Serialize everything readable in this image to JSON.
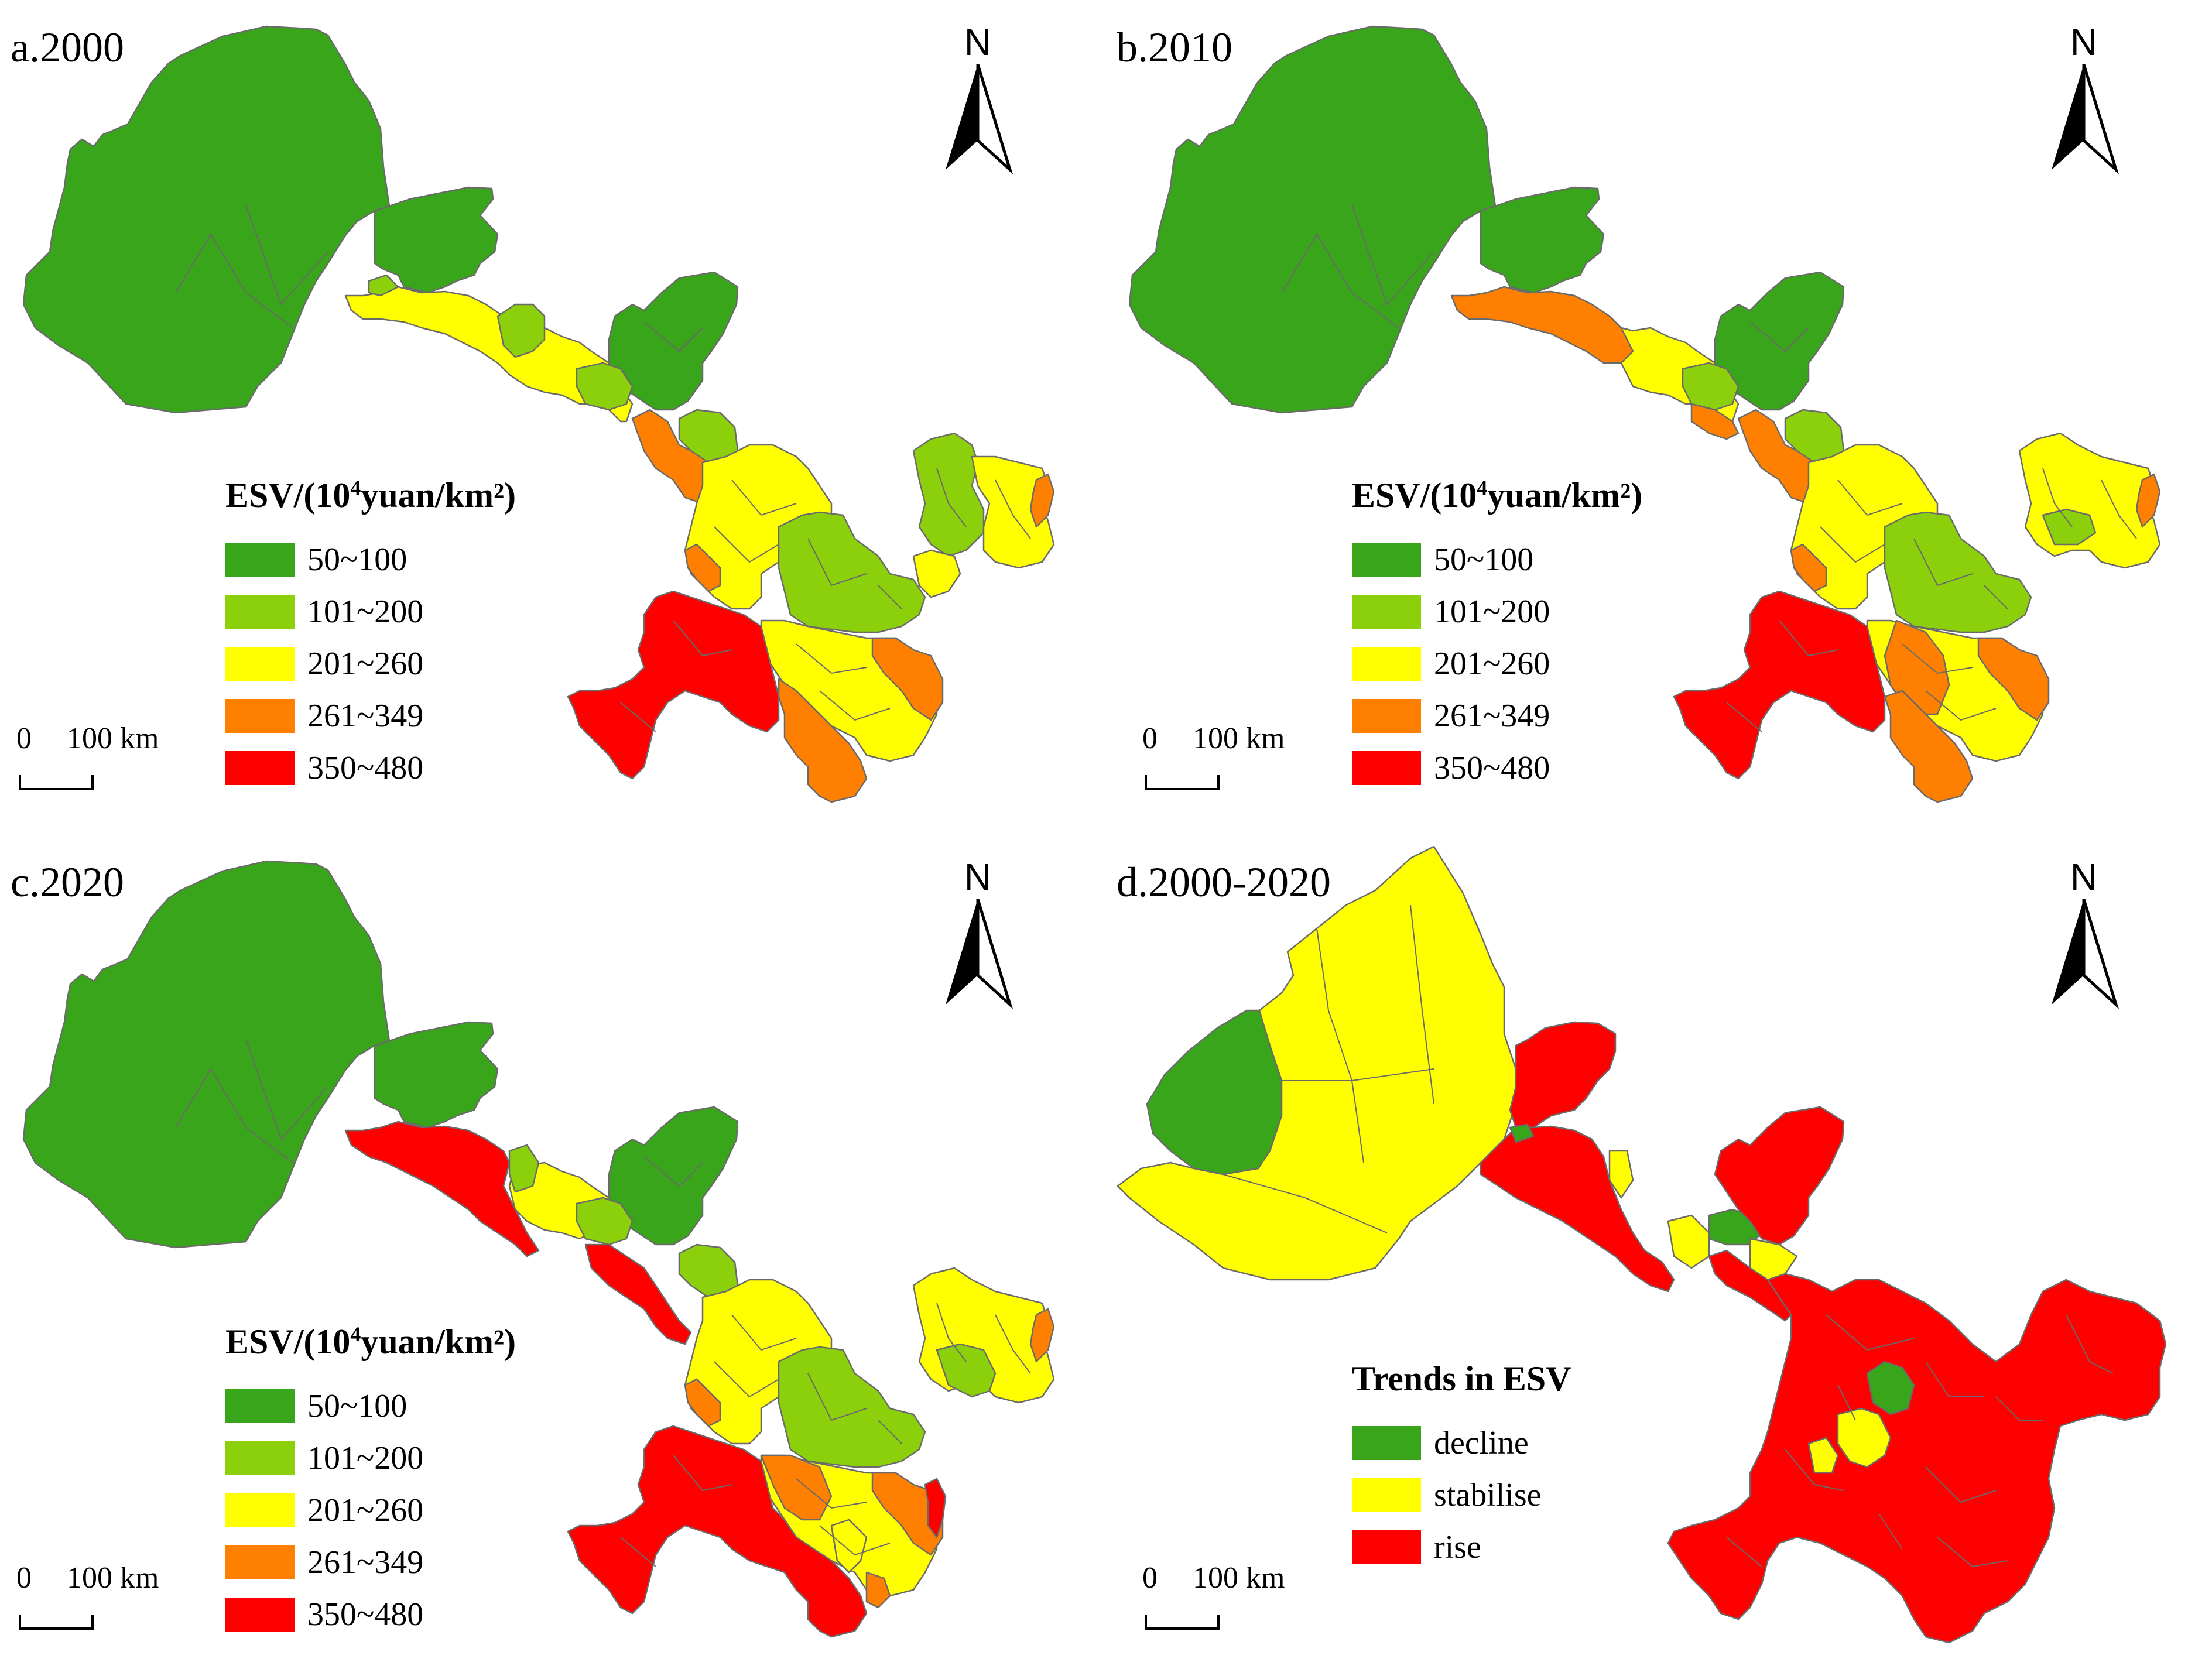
{
  "colors": {
    "esv_50_100": "#39a51a",
    "esv_101_200": "#8bd00a",
    "esv_201_260": "#ffff00",
    "esv_261_349": "#ff7f00",
    "esv_350_480": "#ff0000",
    "decline": "#39a51a",
    "stabilise": "#ffff00",
    "rise": "#ff0000"
  },
  "north_arrow": {
    "letter": "N",
    "icon": "north-arrow-icon"
  },
  "scale_bar": {
    "zero": "0",
    "distance": "100 km"
  },
  "esv_legend": {
    "title_prefix": "ESV/(10",
    "title_exponent": "4",
    "title_suffix": "yuan/km²)",
    "classes": [
      {
        "label": "50~100",
        "color": "#39a51a"
      },
      {
        "label": "101~200",
        "color": "#8bd00a"
      },
      {
        "label": "201~260",
        "color": "#ffff00"
      },
      {
        "label": "261~349",
        "color": "#ff7f00"
      },
      {
        "label": "350~480",
        "color": "#ff0000"
      }
    ]
  },
  "trend_legend": {
    "title": "Trends in ESV",
    "classes": [
      {
        "label": "decline",
        "color": "#39a51a"
      },
      {
        "label": "stabilise",
        "color": "#ffff00"
      },
      {
        "label": "rise",
        "color": "#ff0000"
      }
    ]
  },
  "panels": [
    {
      "id": "a",
      "label": "a.2000"
    },
    {
      "id": "b",
      "label": "b.2010"
    },
    {
      "id": "c",
      "label": "c.2020"
    },
    {
      "id": "d",
      "label": "d.2000-2020"
    }
  ]
}
